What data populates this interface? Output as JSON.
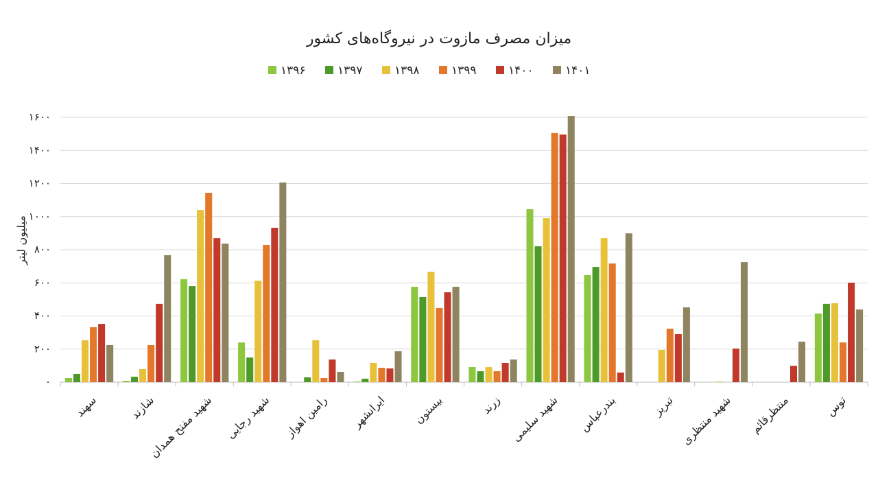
{
  "chart_data": {
    "type": "bar",
    "title": "میزان مصرف مازوت در نیروگاه‌های کشور",
    "y_label": "میلیون لیتر",
    "categories": [
      "سهند",
      "شازند",
      "شهید مفتح همدان",
      "شهید رجایی",
      "رامین اهواز",
      "ایرانشهر",
      "بیستون",
      "زرند",
      "شهید سلیمی",
      "بندرعباس",
      "تبریز",
      "شهید منتظری",
      "منتظرقائم",
      "توس"
    ],
    "series": [
      {
        "name": "۱۳۹۶",
        "color": "#8dc63f",
        "values": [
          25,
          8,
          622,
          240,
          0,
          4,
          576,
          91,
          1045,
          647,
          0,
          0,
          0,
          415
        ]
      },
      {
        "name": "۱۳۹۷",
        "color": "#4d9a2a",
        "values": [
          50,
          33,
          580,
          149,
          29,
          21,
          514,
          66,
          821,
          696,
          0,
          0,
          0,
          473
        ]
      },
      {
        "name": "۱۳۹۸",
        "color": "#e8c13a",
        "values": [
          253,
          79,
          1040,
          613,
          253,
          116,
          667,
          91,
          991,
          870,
          195,
          4,
          0,
          477
        ]
      },
      {
        "name": "۱۳۹۹",
        "color": "#e3782b",
        "values": [
          332,
          224,
          1144,
          829,
          25,
          87,
          448,
          66,
          1505,
          717,
          323,
          0,
          0,
          240
        ]
      },
      {
        "name": "۱۴۰۰",
        "color": "#c0392b",
        "values": [
          352,
          473,
          870,
          933,
          137,
          83,
          543,
          116,
          1496,
          58,
          290,
          203,
          99,
          601
        ]
      },
      {
        "name": "۱۴۰۱",
        "color": "#8e8460",
        "values": [
          224,
          767,
          837,
          1206,
          62,
          187,
          576,
          137,
          1608,
          899,
          452,
          725,
          245,
          439
        ]
      }
    ],
    "ylim": [
      0,
      1600
    ],
    "yticks": [
      {
        "value": 0,
        "label": "۰"
      },
      {
        "value": 200,
        "label": "۲۰۰"
      },
      {
        "value": 400,
        "label": "۴۰۰"
      },
      {
        "value": 600,
        "label": "۶۰۰"
      },
      {
        "value": 800,
        "label": "۸۰۰"
      },
      {
        "value": 1000,
        "label": "۱۰۰۰"
      },
      {
        "value": 1200,
        "label": "۱۲۰۰"
      },
      {
        "value": 1400,
        "label": "۱۴۰۰"
      },
      {
        "value": 1600,
        "label": "۱۶۰۰"
      }
    ],
    "grid": true
  }
}
